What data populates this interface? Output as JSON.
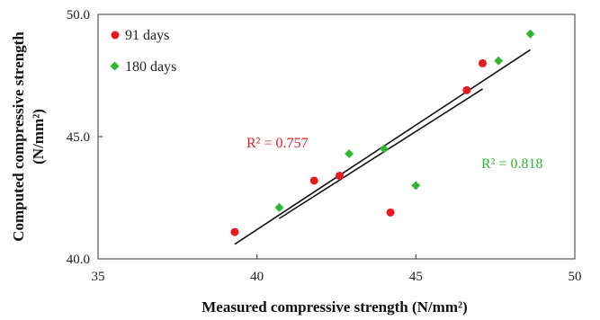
{
  "chart_data": {
    "type": "scatter",
    "xlabel": "Measured compressive strength (N/mm²)",
    "ylabel_line1": "Computed compressive  strength",
    "ylabel_line2": "(N/mm²)",
    "xlim": [
      35,
      50
    ],
    "ylim": [
      40,
      50
    ],
    "x_ticks": [
      "35",
      "40",
      "45",
      "50"
    ],
    "y_ticks": [
      "40.0",
      "45.0",
      "50.0"
    ],
    "grid": false,
    "legend_placement": "top-left",
    "series": [
      {
        "name": "91 days",
        "marker": "circle",
        "color": "#e8191f",
        "points": [
          [
            39.3,
            41.1
          ],
          [
            41.8,
            43.2
          ],
          [
            42.6,
            43.4
          ],
          [
            44.2,
            41.9
          ],
          [
            46.6,
            46.9
          ],
          [
            47.1,
            48.0
          ]
        ],
        "trendline": {
          "x": [
            40.7,
            47.1
          ],
          "y": [
            41.65,
            46.95
          ]
        },
        "r2_label": "R² = 0.757"
      },
      {
        "name": "180 days",
        "marker": "diamond",
        "color": "#2db82d",
        "points": [
          [
            40.7,
            42.1
          ],
          [
            42.9,
            44.3
          ],
          [
            44.0,
            44.5
          ],
          [
            45.0,
            43.0
          ],
          [
            47.6,
            48.1
          ],
          [
            48.6,
            49.2
          ]
        ],
        "trendline": {
          "x": [
            39.3,
            48.6
          ],
          "y": [
            40.6,
            48.55
          ]
        },
        "r2_label": "R² = 0.818"
      }
    ]
  }
}
